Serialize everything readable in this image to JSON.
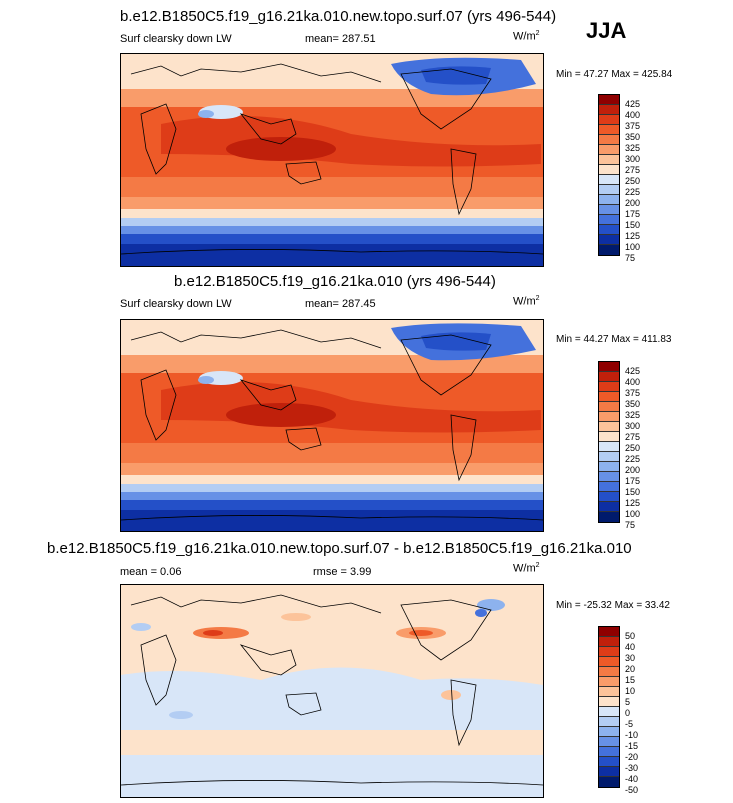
{
  "season": "JJA",
  "panels": [
    {
      "title": "b.e12.B1850C5.f19_g16.21ka.010.new.topo.surf.07 (yrs 496-544)",
      "left_label": "Surf clearsky down LW",
      "mid_label": "mean= 287.51",
      "units_base": "W/m",
      "units_exp": "2",
      "minmax": "Min =  47.27 Max = 425.84",
      "colorbar": {
        "labels": [
          "425",
          "400",
          "375",
          "350",
          "325",
          "300",
          "275",
          "250",
          "225",
          "200",
          "175",
          "150",
          "125",
          "100",
          "75"
        ],
        "colors": [
          "#8f0000",
          "#c0200b",
          "#de3c18",
          "#ee5a28",
          "#f47a45",
          "#f99c6a",
          "#fcc39a",
          "#fde3cb",
          "#d8e6f8",
          "#b3cdf3",
          "#8db2ee",
          "#6791e6",
          "#4471dc",
          "#2450c8",
          "#0d2fa3",
          "#001a6c"
        ]
      }
    },
    {
      "title": "b.e12.B1850C5.f19_g16.21ka.010 (yrs 496-544)",
      "left_label": "Surf clearsky down LW",
      "mid_label": "mean= 287.45",
      "units_base": "W/m",
      "units_exp": "2",
      "minmax": "Min =  44.27 Max = 411.83",
      "colorbar": {
        "labels": [
          "425",
          "400",
          "375",
          "350",
          "325",
          "300",
          "275",
          "250",
          "225",
          "200",
          "175",
          "150",
          "125",
          "100",
          "75"
        ],
        "colors": [
          "#8f0000",
          "#c0200b",
          "#de3c18",
          "#ee5a28",
          "#f47a45",
          "#f99c6a",
          "#fcc39a",
          "#fde3cb",
          "#d8e6f8",
          "#b3cdf3",
          "#8db2ee",
          "#6791e6",
          "#4471dc",
          "#2450c8",
          "#0d2fa3",
          "#001a6c"
        ]
      }
    },
    {
      "title": "b.e12.B1850C5.f19_g16.21ka.010.new.topo.surf.07 - b.e12.B1850C5.f19_g16.21ka.010",
      "left_label": "mean =   0.06",
      "mid_label": "rmse =   3.99",
      "units_base": "W/m",
      "units_exp": "2",
      "minmax": "Min = -25.32 Max =  33.42",
      "colorbar": {
        "labels": [
          "50",
          "40",
          "30",
          "20",
          "15",
          "10",
          "5",
          "0",
          "-5",
          "-10",
          "-15",
          "-20",
          "-30",
          "-40",
          "-50"
        ],
        "colors": [
          "#8f0000",
          "#c0200b",
          "#de3c18",
          "#ee5a28",
          "#f47a45",
          "#f99c6a",
          "#fcc39a",
          "#fde3cb",
          "#d8e6f8",
          "#b3cdf3",
          "#8db2ee",
          "#6791e6",
          "#4471dc",
          "#2450c8",
          "#0d2fa3",
          "#001a6c"
        ]
      }
    }
  ]
}
